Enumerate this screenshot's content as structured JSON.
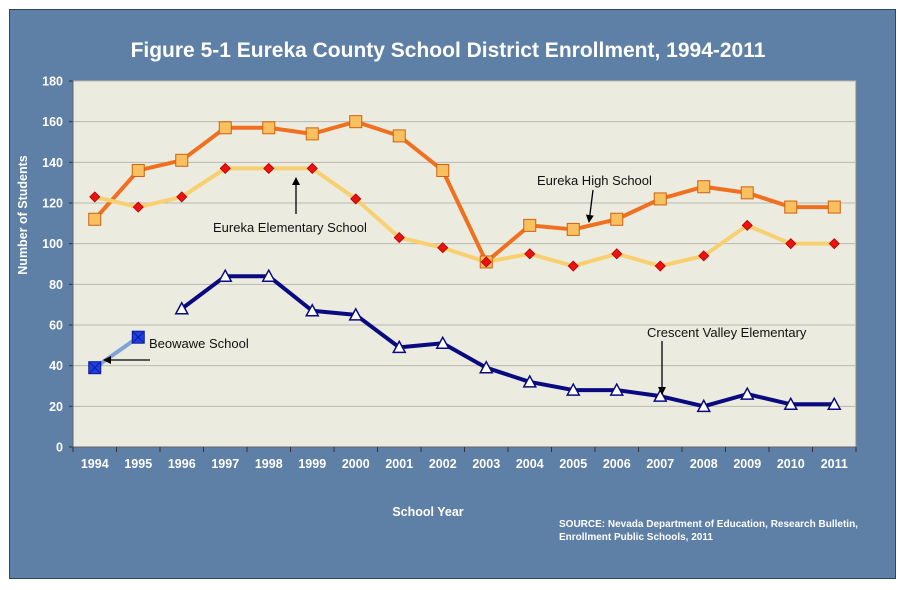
{
  "chart_data": {
    "type": "line",
    "title": "Figure 5-1 Eureka County School District Enrollment, 1994-2011",
    "xlabel": "School Year",
    "ylabel": "Number of Students",
    "source_lines": [
      "SOURCE: Nevada Department of Education, Research Bulletin,",
      "Enrollment Public Schools,  2011"
    ],
    "categories": [
      "1994",
      "1995",
      "1996",
      "1997",
      "1998",
      "1999",
      "2000",
      "2001",
      "2002",
      "2003",
      "2004",
      "2005",
      "2006",
      "2007",
      "2008",
      "2009",
      "2010",
      "2011"
    ],
    "ylim": [
      0,
      180
    ],
    "yticks": [
      0,
      20,
      40,
      60,
      80,
      100,
      120,
      140,
      160,
      180
    ],
    "grid": true,
    "series": [
      {
        "name": "Eureka High School",
        "color": "#f07020",
        "marker": "square",
        "marker_fill": "#f9c060",
        "values": [
          112,
          136,
          141,
          157,
          157,
          154,
          160,
          153,
          136,
          91,
          109,
          107,
          112,
          122,
          128,
          125,
          118,
          118
        ]
      },
      {
        "name": "Eureka Elementary School",
        "color": "#f8d070",
        "marker": "diamond",
        "marker_fill": "#ee1111",
        "values": [
          123,
          118,
          123,
          137,
          137,
          137,
          122,
          103,
          98,
          91,
          95,
          89,
          95,
          89,
          94,
          109,
          100,
          100
        ]
      },
      {
        "name": "Crescent Valley Elementary",
        "color": "#0a0a80",
        "marker": "triangle",
        "marker_fill": "#ffffff",
        "values": [
          null,
          null,
          68,
          84,
          84,
          67,
          65,
          49,
          51,
          39,
          32,
          28,
          28,
          25,
          20,
          26,
          21,
          21
        ]
      },
      {
        "name": "Beowawe School",
        "color": "#7fa3d8",
        "marker": "xsquare",
        "marker_fill": "#1f3ee8",
        "values": [
          39,
          54,
          null,
          null,
          null,
          null,
          null,
          null,
          null,
          null,
          null,
          null,
          null,
          null,
          null,
          null,
          null,
          null
        ]
      }
    ],
    "annotations": [
      {
        "text": "Eureka High School",
        "series": 0
      },
      {
        "text": "Eureka Elementary School",
        "series": 1
      },
      {
        "text": "Crescent Valley Elementary",
        "series": 2
      },
      {
        "text": "Beowawe School",
        "series": 3
      }
    ]
  }
}
